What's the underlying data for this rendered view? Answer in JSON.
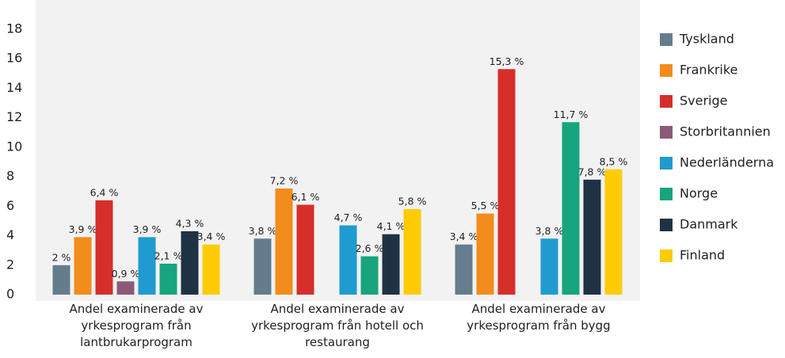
{
  "chart_data": {
    "type": "bar",
    "categories": [
      "Andel examinerade av yrkesprogram från lantbrukarprogram",
      "Andel examinerade av yrkesprogram från hotell och restaurang",
      "Andel examinerade av yrkesprogram från bygg"
    ],
    "series": [
      {
        "name": "Tyskland",
        "color": "#647d8c",
        "values": [
          2,
          3.8,
          3.4
        ],
        "value_labels": [
          "2 %",
          "3,8 %",
          "3,4 %"
        ]
      },
      {
        "name": "Frankrike",
        "color": "#f28c1c",
        "values": [
          3.9,
          7.2,
          5.5
        ],
        "value_labels": [
          "3,9 %",
          "7,2 %",
          "5,5 %"
        ]
      },
      {
        "name": "Sverige",
        "color": "#d62f2b",
        "values": [
          6.4,
          6.1,
          15.3
        ],
        "value_labels": [
          "6,4 %",
          "6,1 %",
          "15,3 %"
        ]
      },
      {
        "name": "Storbritannien",
        "color": "#8c5a78",
        "values": [
          0.9,
          null,
          null
        ],
        "value_labels": [
          "0,9 %",
          null,
          null
        ]
      },
      {
        "name": "Nederländerna",
        "color": "#1f9bd0",
        "values": [
          3.9,
          4.7,
          3.8
        ],
        "value_labels": [
          "3,9 %",
          "4,7 %",
          "3,8 %"
        ]
      },
      {
        "name": "Norge",
        "color": "#17a57e",
        "values": [
          2.1,
          2.6,
          11.7
        ],
        "value_labels": [
          "2,1 %",
          "2,6 %",
          "11,7 %"
        ]
      },
      {
        "name": "Danmark",
        "color": "#1f3244",
        "values": [
          4.3,
          4.1,
          7.8
        ],
        "value_labels": [
          "4,3 %",
          "4,1 %",
          "7,8 %"
        ]
      },
      {
        "name": "Finland",
        "color": "#ffcb05",
        "values": [
          3.4,
          5.8,
          8.5
        ],
        "value_labels": [
          "3,4 %",
          "5,8 %",
          "8,5 %"
        ]
      }
    ],
    "ylim": [
      0,
      18
    ],
    "yticks": [
      0,
      2,
      4,
      6,
      8,
      10,
      12,
      14,
      16,
      18
    ],
    "grid": false,
    "legend": "right"
  }
}
